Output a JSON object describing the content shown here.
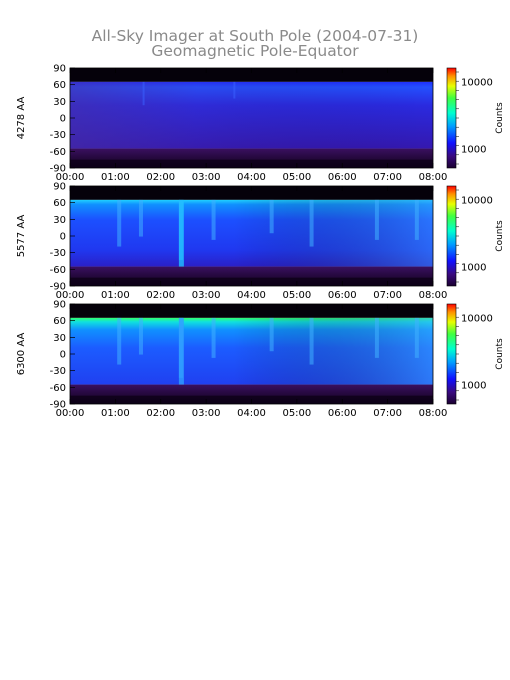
{
  "title": "All-Sky Imager at South Pole (2004-07-31)",
  "subtitle": "Geomagnetic Pole-Equator",
  "chart_data": [
    {
      "type": "heatmap",
      "ylabel": "4278 AA",
      "x_ticks": [
        "00:00",
        "01:00",
        "02:00",
        "03:00",
        "04:00",
        "05:00",
        "06:00",
        "07:00",
        "08:00"
      ],
      "y_ticks": [
        "90",
        "60",
        "30",
        "0",
        "-30",
        "-60",
        "-90"
      ],
      "xlim": [
        "00:00",
        "08:00"
      ],
      "ylim": [
        -90,
        90
      ],
      "colorbar": {
        "label": "Counts",
        "ticks": [
          "10000",
          "1000"
        ],
        "scale": "log"
      },
      "bands": [
        {
          "y": [
            65,
            90
          ],
          "level": "none"
        },
        {
          "y": [
            -55,
            65
          ],
          "level": "low"
        },
        {
          "y": [
            -90,
            -55
          ],
          "level": "none"
        }
      ]
    },
    {
      "type": "heatmap",
      "ylabel": "5577 AA",
      "x_ticks": [
        "00:00",
        "01:00",
        "02:00",
        "03:00",
        "04:00",
        "05:00",
        "06:00",
        "07:00",
        "08:00"
      ],
      "y_ticks": [
        "90",
        "60",
        "30",
        "0",
        "-30",
        "-60",
        "-90"
      ],
      "xlim": [
        "00:00",
        "08:00"
      ],
      "ylim": [
        -90,
        90
      ],
      "colorbar": {
        "label": "Counts",
        "ticks": [
          "10000",
          "1000"
        ],
        "scale": "log"
      },
      "bands": [
        {
          "y": [
            65,
            90
          ],
          "level": "none"
        },
        {
          "y": [
            -55,
            65
          ],
          "level": "medium"
        },
        {
          "y": [
            -90,
            -55
          ],
          "level": "none"
        }
      ]
    },
    {
      "type": "heatmap",
      "ylabel": "6300 AA",
      "x_ticks": [
        "00:00",
        "01:00",
        "02:00",
        "03:00",
        "04:00",
        "05:00",
        "06:00",
        "07:00",
        "08:00"
      ],
      "y_ticks": [
        "90",
        "60",
        "30",
        "0",
        "-30",
        "-60",
        "-90"
      ],
      "xlim": [
        "00:00",
        "08:00"
      ],
      "ylim": [
        -90,
        90
      ],
      "colorbar": {
        "label": "Counts",
        "ticks": [
          "10000",
          "1000"
        ],
        "scale": "log"
      },
      "bands": [
        {
          "y": [
            65,
            90
          ],
          "level": "none"
        },
        {
          "y": [
            -55,
            65
          ],
          "level": "medium-high"
        },
        {
          "y": [
            -90,
            -55
          ],
          "level": "none"
        }
      ]
    }
  ]
}
